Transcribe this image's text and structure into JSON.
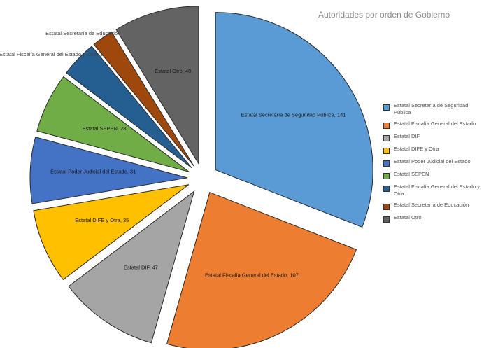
{
  "chart_data": {
    "type": "pie",
    "title": "Autoridades por orden de Gobierno",
    "slices": [
      {
        "name": "Estatal Secretaría de Seguridad Pública",
        "value": 141,
        "label": "Estatal Secretaría de Seguridad Pública, 141",
        "color": "#5b9bd5",
        "legend_label": "Estatal Secretaría de Seguridad Pública"
      },
      {
        "name": "Estatal Fiscalía General del Estado",
        "value": 107,
        "label": "Estatal Fiscalía General del Estado, 107",
        "color": "#ed7d31",
        "legend_label": "Estatal Fiscalía General del Estado"
      },
      {
        "name": "Estatal DIF",
        "value": 47,
        "label": "Estatal DIF, 47",
        "color": "#a5a5a5",
        "legend_label": "Estatal DIF"
      },
      {
        "name": "Estatal DIF y Otra",
        "value": 35,
        "label": "Estatal DIFE y Otra, 35",
        "color": "#ffc000",
        "legend_label": "Estatal DIFE y Otra"
      },
      {
        "name": "Estatal Poder Judicial del Estado",
        "value": 31,
        "label": "Estatal Poder Judicial del Estado, 31",
        "color": "#4472c4",
        "legend_label": "Estatal Poder Judicial del Estado"
      },
      {
        "name": "Estatal SEPEN",
        "value": 28,
        "label": "Estatal SEPEN, 28",
        "color": "#70ad47",
        "legend_label": "Estatal SEPEN"
      },
      {
        "name": "Estatal Fiscalía General del Estado y Otra",
        "value": 17,
        "label": "Estatal Fiscalía General del Estado y Otra, 17",
        "color": "#255e91",
        "legend_label": "Estatal Fiscalía General del Estado y Otra"
      },
      {
        "name": "Estatal Secretaría de Educación",
        "value": 10,
        "label": "Estatal Secretaría de Educación, 10",
        "color": "#9e480e",
        "legend_label": "Estatal Secretaría de Educación"
      },
      {
        "name": "Estatal Otro",
        "value": 40,
        "label": "Estatal Otro, 40",
        "color": "#636363",
        "legend_label": "Estatal Otro"
      }
    ],
    "legend_position": "right"
  }
}
